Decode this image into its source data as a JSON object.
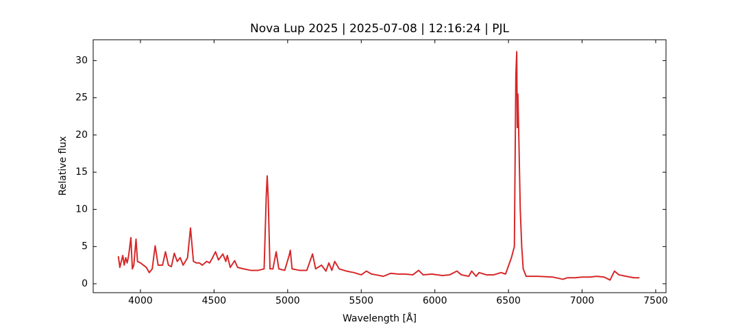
{
  "chart_data": {
    "type": "line",
    "title": "Nova Lup 2025 | 2025-07-08 | 12:16:24 | PJL",
    "x_label": "Wavelength [Å]",
    "y_label": "Relative flux",
    "xlim": [
      3679,
      7570
    ],
    "ylim": [
      -1.2,
      32.8
    ],
    "xticks": [
      4000,
      4500,
      5000,
      5500,
      6000,
      6500,
      7000,
      7500
    ],
    "yticks": [
      0,
      5,
      10,
      15,
      20,
      25,
      30
    ],
    "grid": false,
    "series": [
      {
        "color": "#d62728",
        "x": [
          3850,
          3860,
          3870,
          3880,
          3890,
          3900,
          3910,
          3920,
          3935,
          3945,
          3955,
          3970,
          3980,
          4000,
          4020,
          4040,
          4060,
          4080,
          4100,
          4120,
          4150,
          4170,
          4190,
          4210,
          4230,
          4250,
          4270,
          4290,
          4320,
          4340,
          4360,
          4380,
          4400,
          4420,
          4450,
          4470,
          4490,
          4510,
          4530,
          4560,
          4580,
          4590,
          4610,
          4640,
          4660,
          4700,
          4750,
          4800,
          4840,
          4855,
          4861,
          4868,
          4880,
          4900,
          4922,
          4940,
          4980,
          5010,
          5018,
          5030,
          5080,
          5130,
          5169,
          5190,
          5230,
          5260,
          5280,
          5300,
          5320,
          5350,
          5400,
          5450,
          5500,
          5535,
          5570,
          5600,
          5650,
          5700,
          5750,
          5800,
          5850,
          5890,
          5920,
          5980,
          6050,
          6100,
          6150,
          6180,
          6230,
          6250,
          6280,
          6300,
          6350,
          6400,
          6450,
          6480,
          6520,
          6540,
          6550,
          6556,
          6560,
          6564,
          6570,
          6580,
          6590,
          6600,
          6620,
          6700,
          6800,
          6870,
          6900,
          6950,
          7000,
          7050,
          7100,
          7150,
          7190,
          7220,
          7250,
          7300,
          7350,
          7390
        ],
        "values": [
          3.7,
          2.2,
          3.0,
          3.8,
          2.5,
          3.5,
          2.8,
          3.8,
          6.2,
          2.0,
          2.5,
          6.0,
          3.0,
          2.8,
          2.5,
          2.2,
          1.5,
          2.0,
          5.1,
          2.5,
          2.5,
          4.3,
          2.5,
          2.3,
          4.1,
          3.0,
          3.5,
          2.5,
          3.5,
          7.5,
          3.0,
          2.8,
          2.8,
          2.5,
          3.0,
          2.8,
          3.5,
          4.3,
          3.2,
          4.0,
          3.0,
          3.8,
          2.2,
          3.1,
          2.2,
          2.0,
          1.8,
          1.8,
          2.0,
          12.0,
          14.5,
          11.5,
          2.0,
          2.0,
          4.3,
          2.0,
          1.8,
          3.8,
          4.5,
          2.0,
          1.8,
          1.8,
          4.0,
          2.0,
          2.5,
          1.7,
          2.8,
          1.8,
          3.0,
          2.0,
          1.7,
          1.5,
          1.2,
          1.7,
          1.3,
          1.2,
          1.0,
          1.4,
          1.3,
          1.3,
          1.2,
          1.8,
          1.2,
          1.3,
          1.1,
          1.2,
          1.7,
          1.2,
          1.0,
          1.7,
          1.0,
          1.5,
          1.2,
          1.2,
          1.5,
          1.3,
          3.5,
          5.0,
          28.0,
          31.2,
          21.0,
          25.5,
          20.0,
          10.0,
          5.0,
          2.0,
          1.0,
          1.0,
          0.9,
          0.6,
          0.8,
          0.8,
          0.9,
          0.9,
          1.0,
          0.9,
          0.5,
          1.7,
          1.2,
          1.0,
          0.8,
          0.8
        ]
      }
    ]
  }
}
